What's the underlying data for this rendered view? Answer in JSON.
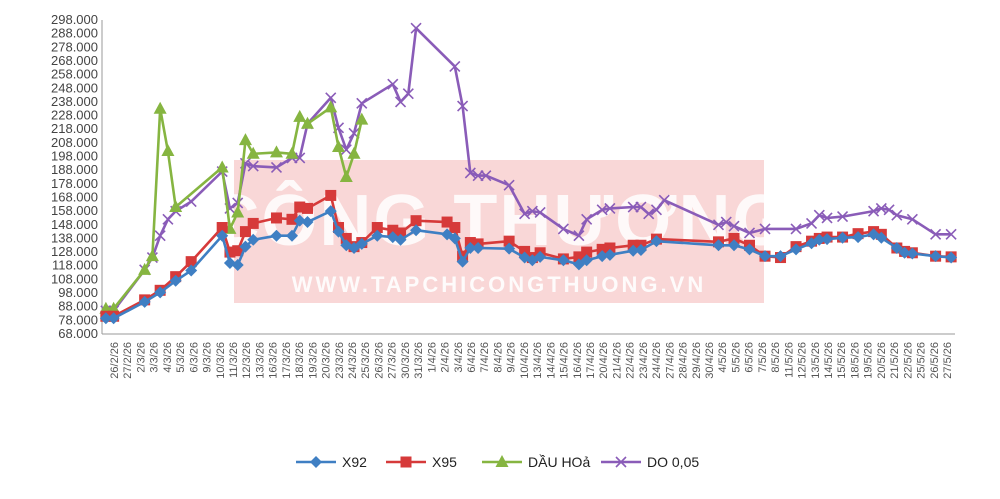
{
  "watermark": {
    "title": "CÔNG THƯƠNG",
    "url": "WWW.TAPCHICONGTHUONG.VN"
  },
  "chart_data": {
    "type": "line",
    "ylim": [
      68000,
      298000
    ],
    "yticks": [
      "68.000",
      "78.000",
      "88.000",
      "98.000",
      "108.000",
      "118.000",
      "128.000",
      "138.000",
      "148.000",
      "158.000",
      "168.000",
      "178.000",
      "188.000",
      "198.000",
      "208.000",
      "218.000",
      "228.000",
      "238.000",
      "248.000",
      "258.000",
      "268.000",
      "278.000",
      "288.000",
      "298.000"
    ],
    "grid": false,
    "legend": "bottom",
    "xlabels": [
      "26/2/26",
      "27/2/26",
      "2/3/26",
      "3/3/26",
      "4/3/26",
      "5/3/26",
      "6/3/26",
      "9/3/26",
      "10/3/26",
      "11/3/26",
      "12/3/26",
      "13/3/26",
      "16/3/26",
      "17/3/26",
      "18/3/26",
      "19/3/26",
      "20/3/26",
      "23/3/26",
      "24/3/26",
      "25/3/26",
      "26/3/26",
      "27/3/26",
      "30/3/26",
      "31/3/26",
      "1/4/26",
      "2/4/26",
      "3/4/26",
      "6/4/26",
      "7/4/26",
      "8/4/26",
      "9/4/26",
      "10/4/26",
      "13/4/26",
      "14/4/26",
      "15/4/26",
      "16/4/26",
      "17/4/26",
      "20/4/26",
      "21/4/26",
      "22/4/26",
      "23/4/26",
      "24/4/26",
      "27/4/26",
      "28/4/26",
      "29/4/26",
      "30/4/26",
      "4/5/26",
      "5/5/26",
      "6/5/26",
      "7/5/26",
      "8/5/26",
      "11/5/26",
      "12/5/26",
      "13/5/26",
      "14/5/26",
      "15/5/26",
      "18/5/26",
      "19/5/26",
      "20/5/26",
      "21/5/26",
      "22/5/26",
      "25/5/26",
      "26/5/26",
      "27/5/26"
    ],
    "series": [
      {
        "name": "X92",
        "color": "#3f7fc3",
        "marker": "diamond",
        "points": [
          [
            0,
            79500
          ],
          [
            1,
            79500
          ],
          [
            5,
            91500
          ],
          [
            7,
            98500
          ],
          [
            9,
            107000
          ],
          [
            11,
            114500
          ],
          [
            15,
            140000
          ],
          [
            16,
            120000
          ],
          [
            17,
            118500
          ],
          [
            18,
            132000
          ],
          [
            19,
            137000
          ],
          [
            22,
            140000
          ],
          [
            24,
            140000
          ],
          [
            25,
            151000
          ],
          [
            26,
            150000
          ],
          [
            29,
            158000
          ],
          [
            30,
            143000
          ],
          [
            31,
            133000
          ],
          [
            32,
            131000
          ],
          [
            33,
            134000
          ],
          [
            35,
            140000
          ],
          [
            37,
            139000
          ],
          [
            38,
            137000
          ],
          [
            40,
            144000
          ],
          [
            44,
            141000
          ],
          [
            45,
            138000
          ],
          [
            46,
            121000
          ],
          [
            47,
            131000
          ],
          [
            48,
            131000
          ],
          [
            52,
            130500
          ],
          [
            54,
            124000
          ],
          [
            55,
            122000
          ],
          [
            56,
            124500
          ],
          [
            59,
            122000
          ],
          [
            61,
            119000
          ],
          [
            62,
            122000
          ],
          [
            64,
            125000
          ],
          [
            65,
            126000
          ],
          [
            68,
            129000
          ],
          [
            69,
            129500
          ],
          [
            71,
            136000
          ],
          [
            79,
            133000
          ],
          [
            81,
            133000
          ],
          [
            83,
            130000
          ],
          [
            85,
            125000
          ],
          [
            87,
            125000
          ],
          [
            89,
            130000
          ],
          [
            91,
            134500
          ],
          [
            92,
            137000
          ],
          [
            93,
            137500
          ],
          [
            95,
            138500
          ],
          [
            97,
            139000
          ],
          [
            99,
            141000
          ],
          [
            100,
            138500
          ],
          [
            102,
            131000
          ],
          [
            103,
            127500
          ],
          [
            104,
            127000
          ],
          [
            107,
            125000
          ],
          [
            109,
            124000
          ]
        ]
      },
      {
        "name": "X95",
        "color": "#d63a3a",
        "marker": "square",
        "points": [
          [
            0,
            81000
          ],
          [
            1,
            81000
          ],
          [
            5,
            93000
          ],
          [
            7,
            100000
          ],
          [
            9,
            110000
          ],
          [
            11,
            121000
          ],
          [
            15,
            146000
          ],
          [
            16,
            128000
          ],
          [
            17,
            129000
          ],
          [
            18,
            143000
          ],
          [
            19,
            149000
          ],
          [
            22,
            153000
          ],
          [
            24,
            152000
          ],
          [
            25,
            161000
          ],
          [
            26,
            160000
          ],
          [
            29,
            169500
          ],
          [
            30,
            146000
          ],
          [
            31,
            138000
          ],
          [
            32,
            132000
          ],
          [
            33,
            135000
          ],
          [
            35,
            146000
          ],
          [
            37,
            144000
          ],
          [
            38,
            142000
          ],
          [
            40,
            151000
          ],
          [
            44,
            150000
          ],
          [
            45,
            146000
          ],
          [
            46,
            125000
          ],
          [
            47,
            135000
          ],
          [
            48,
            134000
          ],
          [
            52,
            136000
          ],
          [
            54,
            128500
          ],
          [
            55,
            124000
          ],
          [
            56,
            127500
          ],
          [
            59,
            123000
          ],
          [
            61,
            124500
          ],
          [
            62,
            128000
          ],
          [
            64,
            130000
          ],
          [
            65,
            131000
          ],
          [
            68,
            133000
          ],
          [
            69,
            133000
          ],
          [
            71,
            137500
          ],
          [
            79,
            135500
          ],
          [
            81,
            138000
          ],
          [
            83,
            133000
          ],
          [
            85,
            125000
          ],
          [
            87,
            124000
          ],
          [
            89,
            132000
          ],
          [
            91,
            136000
          ],
          [
            92,
            138000
          ],
          [
            93,
            139000
          ],
          [
            95,
            139000
          ],
          [
            97,
            141500
          ],
          [
            99,
            143000
          ],
          [
            100,
            141000
          ],
          [
            102,
            131000
          ],
          [
            103,
            128500
          ],
          [
            104,
            127500
          ],
          [
            107,
            125000
          ],
          [
            109,
            124500
          ]
        ]
      },
      {
        "name": "DẦU HOả",
        "color": "#86b541",
        "marker": "triangle",
        "points": [
          [
            0,
            86500
          ],
          [
            1,
            86500
          ],
          [
            5,
            115000
          ],
          [
            6,
            125000
          ],
          [
            7,
            233000
          ],
          [
            8,
            202000
          ],
          [
            9,
            161000
          ],
          [
            15,
            190000
          ],
          [
            16,
            145000
          ],
          [
            17,
            157000
          ],
          [
            18,
            210000
          ],
          [
            19,
            200000
          ],
          [
            22,
            201000
          ],
          [
            24,
            200000
          ],
          [
            25,
            227000
          ],
          [
            26,
            222000
          ],
          [
            29,
            234000
          ],
          [
            30,
            205000
          ],
          [
            31,
            183000
          ],
          [
            32,
            200000
          ],
          [
            33,
            225000
          ]
        ]
      },
      {
        "name": "DO 0,05",
        "color": "#8a5cb8",
        "marker": "x",
        "points": [
          [
            0,
            85000
          ],
          [
            1,
            85000
          ],
          [
            5,
            115000
          ],
          [
            6,
            124000
          ],
          [
            7,
            140000
          ],
          [
            8,
            152000
          ],
          [
            9,
            158000
          ],
          [
            11,
            165000
          ],
          [
            15,
            187000
          ],
          [
            16,
            160000
          ],
          [
            17,
            164000
          ],
          [
            18,
            193000
          ],
          [
            19,
            191000
          ],
          [
            22,
            190000
          ],
          [
            24,
            197000
          ],
          [
            25,
            197000
          ],
          [
            26,
            222000
          ],
          [
            29,
            241000
          ],
          [
            30,
            219000
          ],
          [
            31,
            203000
          ],
          [
            32,
            215000
          ],
          [
            33,
            237000
          ],
          [
            37,
            251000
          ],
          [
            38,
            238000
          ],
          [
            39,
            244000
          ],
          [
            40,
            292000
          ],
          [
            45,
            264000
          ],
          [
            46,
            235000
          ],
          [
            47,
            186000
          ],
          [
            48,
            184000
          ],
          [
            49,
            184000
          ],
          [
            52,
            177000
          ],
          [
            54,
            156000
          ],
          [
            55,
            158000
          ],
          [
            56,
            157000
          ],
          [
            59,
            145000
          ],
          [
            61,
            140000
          ],
          [
            62,
            152000
          ],
          [
            64,
            159000
          ],
          [
            65,
            160000
          ],
          [
            68,
            161000
          ],
          [
            69,
            161000
          ],
          [
            70,
            156000
          ],
          [
            71,
            159000
          ],
          [
            72,
            166000
          ],
          [
            79,
            148000
          ],
          [
            80,
            150000
          ],
          [
            81,
            147000
          ],
          [
            83,
            142000
          ],
          [
            85,
            145000
          ],
          [
            89,
            145000
          ],
          [
            91,
            149000
          ],
          [
            92,
            155000
          ],
          [
            93,
            153000
          ],
          [
            95,
            154000
          ],
          [
            99,
            158000
          ],
          [
            100,
            160000
          ],
          [
            101,
            159000
          ],
          [
            102,
            155000
          ],
          [
            104,
            152000
          ],
          [
            107,
            141000
          ],
          [
            109,
            141000
          ]
        ]
      }
    ]
  }
}
